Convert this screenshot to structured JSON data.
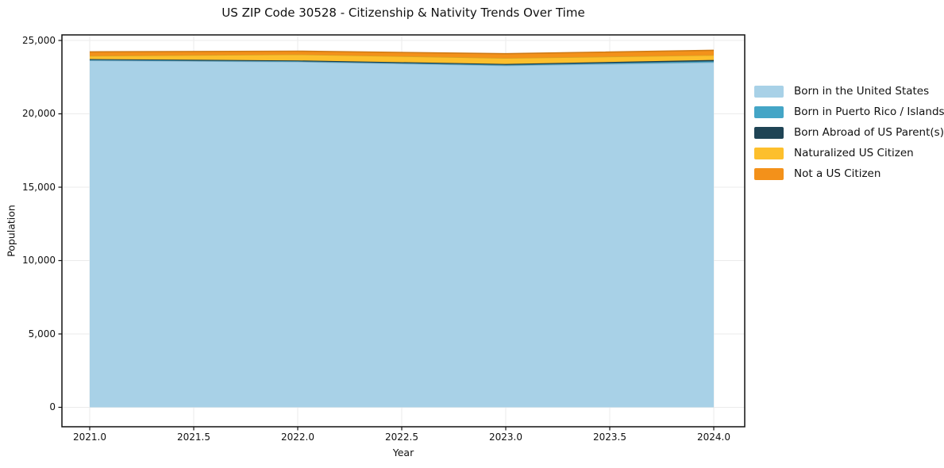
{
  "title": "US ZIP Code 30528 - Citizenship & Nativity Trends Over Time",
  "chart_data": {
    "type": "area",
    "stacked": true,
    "title": "US ZIP Code 30528 - Citizenship & Nativity Trends Over Time",
    "xlabel": "Year",
    "ylabel": "Population",
    "x": [
      2021,
      2022,
      2023,
      2024
    ],
    "xlim": [
      2021.0,
      2024.0
    ],
    "ylim": [
      0,
      25000
    ],
    "x_ticks": [
      2021.0,
      2021.5,
      2022.0,
      2022.5,
      2023.0,
      2023.5,
      2024.0
    ],
    "x_tick_labels": [
      "2021.0",
      "2021.5",
      "2022.0",
      "2022.5",
      "2023.0",
      "2023.5",
      "2024.0"
    ],
    "y_ticks": [
      0,
      5000,
      10000,
      15000,
      20000,
      25000
    ],
    "y_tick_labels": [
      "0",
      "5,000",
      "10,000",
      "15,000",
      "20,000",
      "25,000"
    ],
    "grid": true,
    "grid_color": "#ebebeb",
    "frame_color": "#111111",
    "legend_position": "right",
    "series": [
      {
        "name": "Born in the United States",
        "color": "#a8d1e7",
        "values": [
          23640,
          23550,
          23290,
          23510
        ]
      },
      {
        "name": "Born in Puerto Rico / Islands",
        "color": "#44a5c6",
        "values": [
          40,
          40,
          50,
          80
        ]
      },
      {
        "name": "Born Abroad of US Parent(s)",
        "color": "#1f4455",
        "values": [
          50,
          50,
          60,
          80
        ]
      },
      {
        "name": "Naturalized US Citizen",
        "color": "#fdbf2c",
        "values": [
          220,
          410,
          400,
          330
        ]
      },
      {
        "name": "Not a US Citizen",
        "color": "#f3911a",
        "values": [
          270,
          220,
          300,
          330
        ]
      }
    ]
  }
}
